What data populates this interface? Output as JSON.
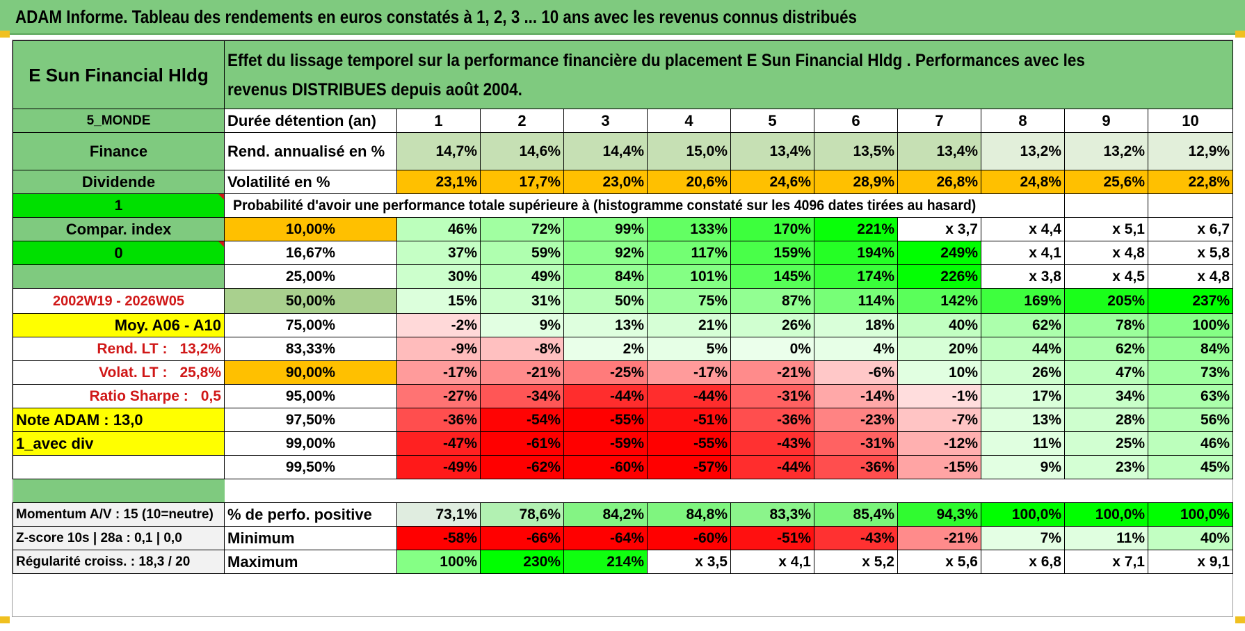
{
  "title": "ADAM Informe. Tableau des rendements en euros constatés à 1, 2, 3 ... 10 ans avec les revenus connus distribués",
  "header": {
    "fund_name": "E Sun Financial Hldg",
    "description": "Effet du lissage temporel sur la performance financière du placement E Sun Financial Hldg . Performances avec les revenus DISTRIBUES depuis août 2004."
  },
  "left_labels": {
    "zone": "5_MONDE",
    "sector": "Finance",
    "type": "Dividende",
    "flag1": "1",
    "compar": "Compar. index",
    "flag0": "0",
    "period": "2002W19 - 2026W05",
    "moy": "Moy. A06 - A10",
    "rend_lt_label": "Rend. LT :",
    "rend_lt_value": "13,2%",
    "volat_lt_label": "Volat. LT :",
    "volat_lt_value": "25,8%",
    "sharpe_label": "Ratio Sharpe :",
    "sharpe_value": "0,5",
    "note": "Note ADAM : 13,0",
    "avec_div": "1_avec div",
    "momentum": "Momentum A/V : 15 (10=neutre)",
    "zscore": "Z-score 10s | 28a : 0,1 | 0,0",
    "regularite": "Régularité croiss. : 18,3 / 20"
  },
  "row_labels": {
    "duree": "Durée détention (an)",
    "rend": "Rend. annualisé en %",
    "vol": "Volatilité en %",
    "proba": "Probabilité d'avoir une performance totale supérieure à (histogramme constaté sur les 4096 dates tirées au hasard)",
    "positive": "% de perfo. positive",
    "minimum": "Minimum",
    "maximum": "Maximum"
  },
  "years": [
    "1",
    "2",
    "3",
    "4",
    "5",
    "6",
    "7",
    "8",
    "9",
    "10"
  ],
  "rend_annualise": [
    "14,7%",
    "14,6%",
    "14,4%",
    "15,0%",
    "13,4%",
    "13,5%",
    "13,4%",
    "13,2%",
    "13,2%",
    "12,9%"
  ],
  "volatilite": [
    "23,1%",
    "17,7%",
    "23,0%",
    "20,6%",
    "24,6%",
    "28,9%",
    "26,8%",
    "24,8%",
    "25,6%",
    "22,8%"
  ],
  "probability_rows": [
    {
      "p": "10,00%",
      "values": [
        "46%",
        "72%",
        "99%",
        "133%",
        "170%",
        "221%",
        "x 3,7",
        "x 4,4",
        "x 5,1",
        "x 6,7"
      ]
    },
    {
      "p": "16,67%",
      "values": [
        "37%",
        "59%",
        "92%",
        "117%",
        "159%",
        "194%",
        "249%",
        "x 4,1",
        "x 4,8",
        "x 5,8"
      ]
    },
    {
      "p": "25,00%",
      "values": [
        "30%",
        "49%",
        "84%",
        "101%",
        "145%",
        "174%",
        "226%",
        "x 3,8",
        "x 4,5",
        "x 4,8"
      ]
    },
    {
      "p": "50,00%",
      "values": [
        "15%",
        "31%",
        "50%",
        "75%",
        "87%",
        "114%",
        "142%",
        "169%",
        "205%",
        "237%"
      ]
    },
    {
      "p": "75,00%",
      "values": [
        "-2%",
        "9%",
        "13%",
        "21%",
        "26%",
        "18%",
        "40%",
        "62%",
        "78%",
        "100%"
      ]
    },
    {
      "p": "83,33%",
      "values": [
        "-9%",
        "-8%",
        "2%",
        "5%",
        "0%",
        "4%",
        "20%",
        "44%",
        "62%",
        "84%"
      ]
    },
    {
      "p": "90,00%",
      "values": [
        "-17%",
        "-21%",
        "-25%",
        "-17%",
        "-21%",
        "-6%",
        "10%",
        "26%",
        "47%",
        "73%"
      ]
    },
    {
      "p": "95,00%",
      "values": [
        "-27%",
        "-34%",
        "-44%",
        "-44%",
        "-31%",
        "-14%",
        "-1%",
        "17%",
        "34%",
        "63%"
      ]
    },
    {
      "p": "97,50%",
      "values": [
        "-36%",
        "-54%",
        "-55%",
        "-51%",
        "-36%",
        "-23%",
        "-7%",
        "13%",
        "28%",
        "56%"
      ]
    },
    {
      "p": "99,00%",
      "values": [
        "-47%",
        "-61%",
        "-59%",
        "-55%",
        "-43%",
        "-31%",
        "-12%",
        "11%",
        "25%",
        "46%"
      ]
    },
    {
      "p": "99,50%",
      "values": [
        "-49%",
        "-62%",
        "-60%",
        "-57%",
        "-44%",
        "-36%",
        "-15%",
        "9%",
        "23%",
        "45%"
      ]
    }
  ],
  "positive": [
    "73,1%",
    "78,6%",
    "84,2%",
    "84,8%",
    "83,3%",
    "85,4%",
    "94,3%",
    "100,0%",
    "100,0%",
    "100,0%"
  ],
  "minimum": [
    "-58%",
    "-66%",
    "-64%",
    "-60%",
    "-51%",
    "-43%",
    "-21%",
    "7%",
    "11%",
    "40%"
  ],
  "maximum": [
    "100%",
    "230%",
    "214%",
    "x 3,5",
    "x 4,1",
    "x 5,2",
    "x 5,6",
    "x 6,8",
    "x 7,1",
    "x 9,1"
  ],
  "colors": {
    "header_green": "#7fca7f",
    "bright_green": "#00e000",
    "yellow": "#ffff00",
    "orange": "#ffc000",
    "light_rend": "#c6e0b4",
    "red_text": "#d01818"
  }
}
